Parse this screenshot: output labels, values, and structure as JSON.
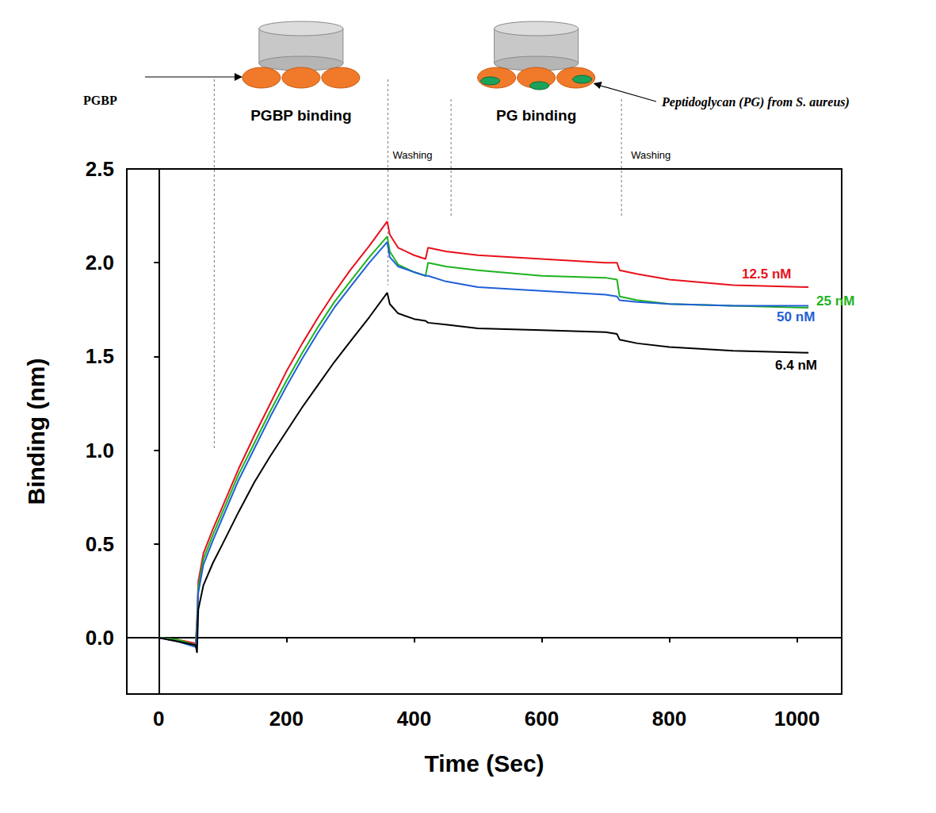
{
  "chart_data": {
    "type": "line",
    "x_label": "Time (Sec)",
    "y_label": "Binding (nm)",
    "xlim": [
      -50,
      1070
    ],
    "xticks": [
      0,
      200,
      400,
      600,
      800,
      1000
    ],
    "ylim": [
      -0.3,
      2.5
    ],
    "yticks": [
      {
        "value": 0,
        "label": "0.0"
      },
      {
        "value": 0.5,
        "label": "0.5"
      },
      {
        "value": 1,
        "label": "1.0"
      },
      {
        "value": 1.5,
        "label": "1.5"
      },
      {
        "value": 2,
        "label": "2.0"
      },
      {
        "value": 2.5,
        "label": "2.5"
      }
    ],
    "grid": false,
    "x": [
      0,
      30,
      58,
      60,
      62,
      70,
      85,
      100,
      125,
      150,
      175,
      200,
      225,
      250,
      275,
      300,
      330,
      358,
      362,
      375,
      400,
      418,
      422,
      450,
      500,
      600,
      700,
      718,
      722,
      750,
      800,
      900,
      1018
    ],
    "series": [
      {
        "name": "12.5 nM",
        "color": "#e8111b",
        "values": [
          0.0,
          -0.01,
          -0.03,
          0.1,
          0.3,
          0.45,
          0.58,
          0.7,
          0.9,
          1.08,
          1.25,
          1.42,
          1.57,
          1.71,
          1.84,
          1.96,
          2.09,
          2.22,
          2.15,
          2.08,
          2.04,
          2.02,
          2.08,
          2.06,
          2.04,
          2.02,
          2.0,
          2.0,
          1.96,
          1.94,
          1.91,
          1.88,
          1.87
        ]
      },
      {
        "name": "25 nM",
        "color": "#1db31d",
        "values": [
          0.0,
          -0.01,
          -0.04,
          0.08,
          0.27,
          0.42,
          0.55,
          0.67,
          0.87,
          1.04,
          1.21,
          1.37,
          1.52,
          1.66,
          1.79,
          1.9,
          2.03,
          2.14,
          2.06,
          1.99,
          1.95,
          1.93,
          2.0,
          1.98,
          1.96,
          1.93,
          1.92,
          1.91,
          1.82,
          1.8,
          1.78,
          1.77,
          1.76
        ]
      },
      {
        "name": "50 nM",
        "color": "#1f5fd6",
        "values": [
          0.0,
          -0.02,
          -0.05,
          0.05,
          0.24,
          0.39,
          0.52,
          0.64,
          0.84,
          1.01,
          1.18,
          1.34,
          1.49,
          1.63,
          1.76,
          1.87,
          2.0,
          2.11,
          2.03,
          1.98,
          1.95,
          1.93,
          1.93,
          1.9,
          1.87,
          1.85,
          1.83,
          1.82,
          1.8,
          1.79,
          1.78,
          1.77,
          1.77
        ]
      },
      {
        "name": "6.4 nM",
        "color": "#000000",
        "values": [
          0.0,
          -0.02,
          -0.04,
          -0.08,
          0.15,
          0.28,
          0.4,
          0.5,
          0.67,
          0.83,
          0.97,
          1.1,
          1.23,
          1.35,
          1.47,
          1.58,
          1.71,
          1.84,
          1.78,
          1.73,
          1.7,
          1.69,
          1.68,
          1.67,
          1.65,
          1.64,
          1.63,
          1.62,
          1.59,
          1.57,
          1.55,
          1.53,
          1.52
        ]
      }
    ],
    "phase_lines": [
      {
        "x": 87,
        "y": 1.0
      },
      {
        "x": 359,
        "y": 1.88
      },
      {
        "x": 458,
        "y": 2.24
      },
      {
        "x": 725,
        "y": 2.24
      }
    ],
    "annotations": {
      "protein": "PGBP",
      "step1": "PGBP binding",
      "wash1": "Washing",
      "step2": "PG binding",
      "ligand": "Peptidoglycan (PG) from S. aureus)",
      "wash2": "Washing"
    }
  }
}
